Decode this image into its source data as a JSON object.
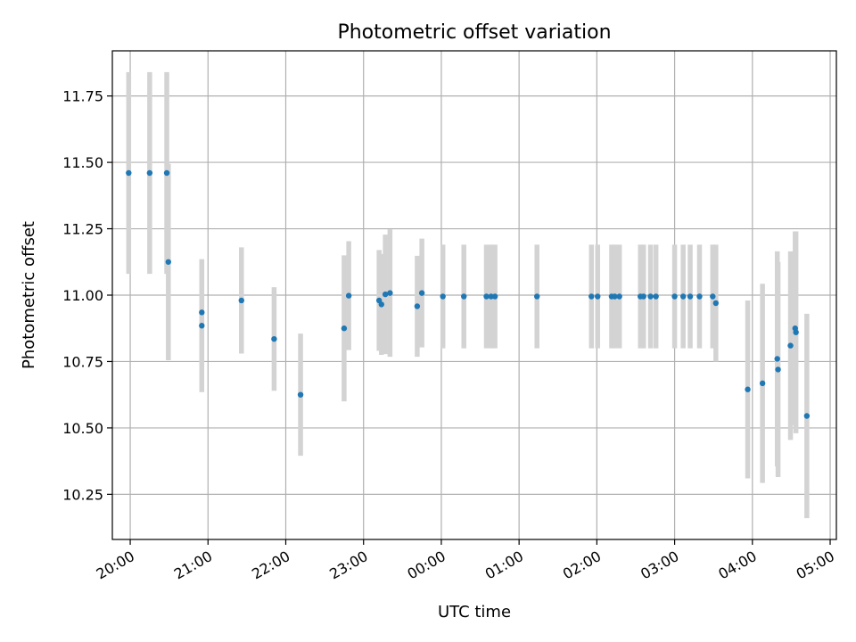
{
  "chart_data": {
    "type": "scatter",
    "title": "Photometric offset variation",
    "xlabel": "UTC time",
    "ylabel": "Photometric offset",
    "x_unit": "hours since 00:00 UTC (values before midnight are negative)",
    "xlim": [
      -4.23,
      5.08
    ],
    "ylim": [
      10.08,
      11.92
    ],
    "grid": true,
    "x_ticks": [
      {
        "value": -4,
        "label": "20:00"
      },
      {
        "value": -3,
        "label": "21:00"
      },
      {
        "value": -2,
        "label": "22:00"
      },
      {
        "value": -1,
        "label": "23:00"
      },
      {
        "value": 0,
        "label": "00:00"
      },
      {
        "value": 1,
        "label": "01:00"
      },
      {
        "value": 2,
        "label": "02:00"
      },
      {
        "value": 3,
        "label": "03:00"
      },
      {
        "value": 4,
        "label": "04:00"
      },
      {
        "value": 5,
        "label": "05:00"
      }
    ],
    "y_ticks": [
      {
        "value": 10.25,
        "label": "10.25"
      },
      {
        "value": 10.5,
        "label": "10.50"
      },
      {
        "value": 10.75,
        "label": "10.75"
      },
      {
        "value": 11.0,
        "label": "11.00"
      },
      {
        "value": 11.25,
        "label": "11.25"
      },
      {
        "value": 11.5,
        "label": "11.50"
      },
      {
        "value": 11.75,
        "label": "11.75"
      }
    ],
    "marker_color": "#1f77b4",
    "errorbar_color": "#d3d3d3",
    "points": [
      {
        "x": -4.02,
        "y": 11.46,
        "err": 0.38
      },
      {
        "x": -3.75,
        "y": 11.46,
        "err": 0.38
      },
      {
        "x": -3.53,
        "y": 11.46,
        "err": 0.38
      },
      {
        "x": -3.51,
        "y": 11.125,
        "err": 0.37
      },
      {
        "x": -3.08,
        "y": 10.935,
        "err": 0.2
      },
      {
        "x": -3.08,
        "y": 10.885,
        "err": 0.25
      },
      {
        "x": -2.57,
        "y": 10.98,
        "err": 0.2
      },
      {
        "x": -2.15,
        "y": 10.835,
        "err": 0.195
      },
      {
        "x": -1.81,
        "y": 10.625,
        "err": 0.23
      },
      {
        "x": -1.25,
        "y": 10.875,
        "err": 0.275
      },
      {
        "x": -1.19,
        "y": 10.998,
        "err": 0.205
      },
      {
        "x": -0.8,
        "y": 10.98,
        "err": 0.19
      },
      {
        "x": -0.77,
        "y": 10.965,
        "err": 0.19
      },
      {
        "x": -0.72,
        "y": 11.003,
        "err": 0.225
      },
      {
        "x": -0.66,
        "y": 11.008,
        "err": 0.24
      },
      {
        "x": -0.31,
        "y": 10.958,
        "err": 0.19
      },
      {
        "x": -0.25,
        "y": 11.008,
        "err": 0.205
      },
      {
        "x": 0.02,
        "y": 10.995,
        "err": 0.195
      },
      {
        "x": 0.29,
        "y": 10.995,
        "err": 0.195
      },
      {
        "x": 0.58,
        "y": 10.995,
        "err": 0.195
      },
      {
        "x": 0.64,
        "y": 10.995,
        "err": 0.195
      },
      {
        "x": 0.69,
        "y": 10.995,
        "err": 0.195
      },
      {
        "x": 1.23,
        "y": 10.995,
        "err": 0.195
      },
      {
        "x": 1.93,
        "y": 10.995,
        "err": 0.195
      },
      {
        "x": 2.01,
        "y": 10.995,
        "err": 0.195
      },
      {
        "x": 2.19,
        "y": 10.995,
        "err": 0.195
      },
      {
        "x": 2.23,
        "y": 10.995,
        "err": 0.195
      },
      {
        "x": 2.29,
        "y": 10.995,
        "err": 0.195
      },
      {
        "x": 2.56,
        "y": 10.995,
        "err": 0.195
      },
      {
        "x": 2.6,
        "y": 10.995,
        "err": 0.195
      },
      {
        "x": 2.69,
        "y": 10.995,
        "err": 0.195
      },
      {
        "x": 2.76,
        "y": 10.995,
        "err": 0.195
      },
      {
        "x": 3.0,
        "y": 10.995,
        "err": 0.195
      },
      {
        "x": 3.11,
        "y": 10.995,
        "err": 0.195
      },
      {
        "x": 3.2,
        "y": 10.995,
        "err": 0.195
      },
      {
        "x": 3.32,
        "y": 10.995,
        "err": 0.195
      },
      {
        "x": 3.49,
        "y": 10.995,
        "err": 0.195
      },
      {
        "x": 3.53,
        "y": 10.97,
        "err": 0.22
      },
      {
        "x": 3.94,
        "y": 10.645,
        "err": 0.335
      },
      {
        "x": 4.13,
        "y": 10.668,
        "err": 0.375
      },
      {
        "x": 4.32,
        "y": 10.76,
        "err": 0.405
      },
      {
        "x": 4.33,
        "y": 10.72,
        "err": 0.405
      },
      {
        "x": 4.49,
        "y": 10.81,
        "err": 0.355
      },
      {
        "x": 4.55,
        "y": 10.875,
        "err": 0.365
      },
      {
        "x": 4.56,
        "y": 10.86,
        "err": 0.38
      },
      {
        "x": 4.7,
        "y": 10.545,
        "err": 0.385
      }
    ]
  }
}
